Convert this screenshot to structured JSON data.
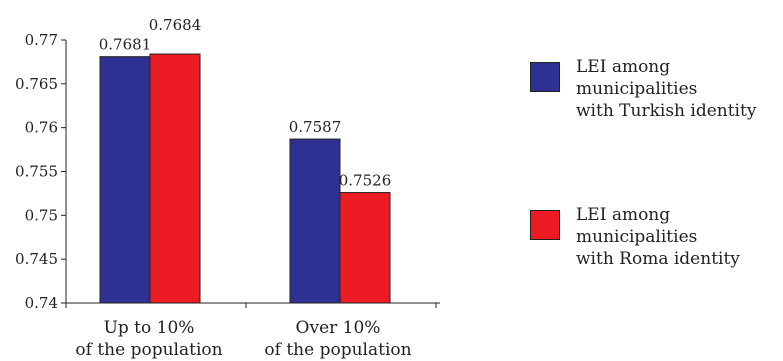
{
  "chart_data": {
    "type": "bar",
    "categories": [
      [
        "Up to 10%",
        "of the population"
      ],
      [
        "Over 10%",
        "of the population"
      ]
    ],
    "series": [
      {
        "name": [
          "LEI among",
          "municipalities",
          "with Turkish identity"
        ],
        "values": [
          0.7681,
          0.7587
        ],
        "labels": [
          "0.7681",
          "0.7587"
        ],
        "color": "#2e3192"
      },
      {
        "name": [
          "LEI among",
          "municipalities",
          "with Roma identity"
        ],
        "values": [
          0.7684,
          0.7526
        ],
        "labels": [
          "0.7684",
          "0.7526"
        ],
        "color": "#ed1c24"
      }
    ],
    "ylim": [
      0.74,
      0.77
    ],
    "yticks": [
      "0.77",
      "0.765",
      "0.76",
      "0.755",
      "0.75",
      "0.745",
      "0.74"
    ],
    "ytick_values": [
      0.77,
      0.765,
      0.76,
      0.755,
      0.75,
      0.745,
      0.74
    ],
    "legend_position": "right",
    "grid": false
  }
}
